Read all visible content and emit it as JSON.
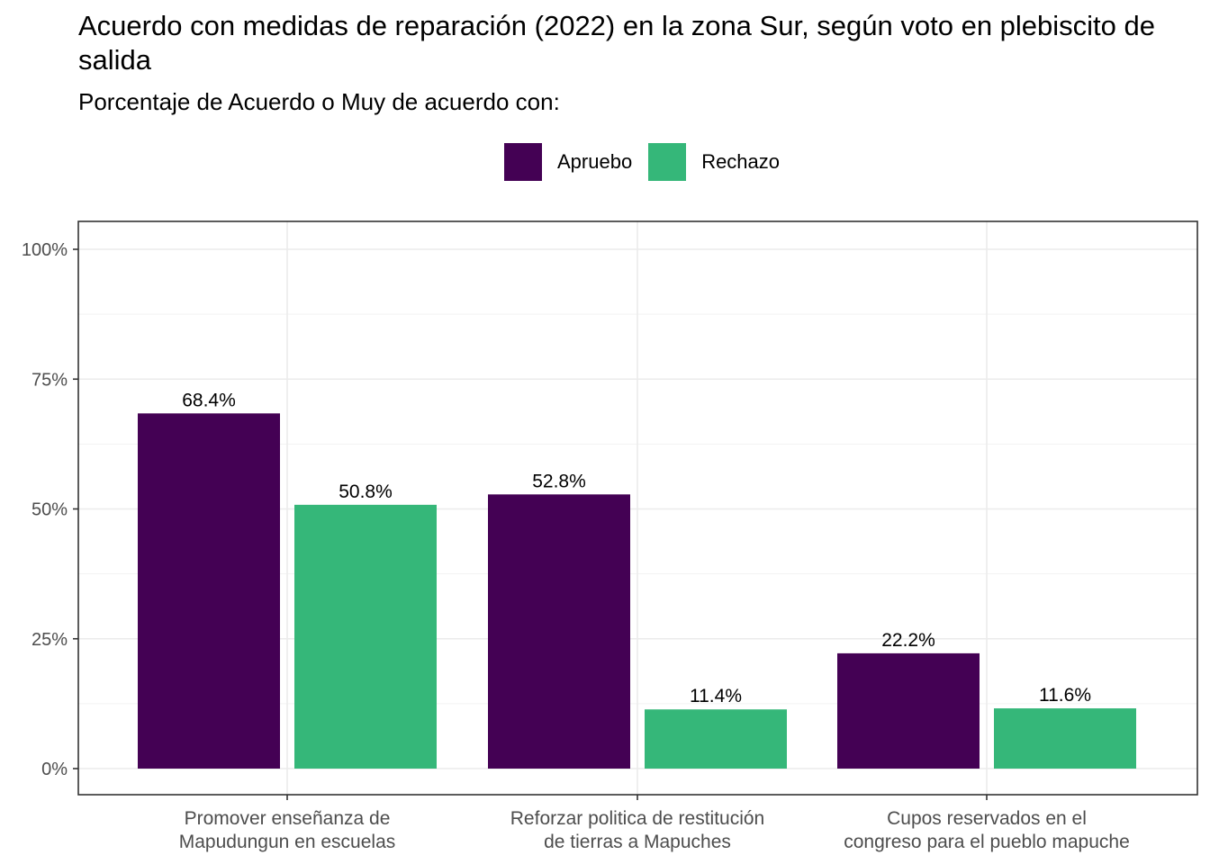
{
  "chart_data": {
    "type": "bar",
    "title": "Acuerdo con medidas de reparación (2022) en la zona Sur, según voto en plebiscito de salida",
    "subtitle": "Porcentaje de Acuerdo o Muy de acuerdo con:",
    "categories": [
      [
        "Promover enseñanza de",
        "Mapudungun en escuelas"
      ],
      [
        "Reforzar politica de restitución",
        "de tierras a Mapuches"
      ],
      [
        "Cupos reservados en el",
        "congreso para el pueblo mapuche"
      ]
    ],
    "series": [
      {
        "name": "Apruebo",
        "color": "#440154",
        "values": [
          68.4,
          52.8,
          22.2
        ],
        "labels": [
          "68.4%",
          "52.8%",
          "22.2%"
        ]
      },
      {
        "name": "Rechazo",
        "color": "#35b779",
        "values": [
          50.8,
          11.4,
          11.6
        ],
        "labels": [
          "50.8%",
          "11.4%",
          "11.6%"
        ]
      }
    ],
    "ylim": [
      0,
      100
    ],
    "yticks": [
      0,
      25,
      50,
      75,
      100
    ],
    "ytick_labels": [
      "0%",
      "25%",
      "50%",
      "75%",
      "100%"
    ],
    "xlabel": "",
    "ylabel": "",
    "grid": true,
    "legend_position": "top"
  }
}
